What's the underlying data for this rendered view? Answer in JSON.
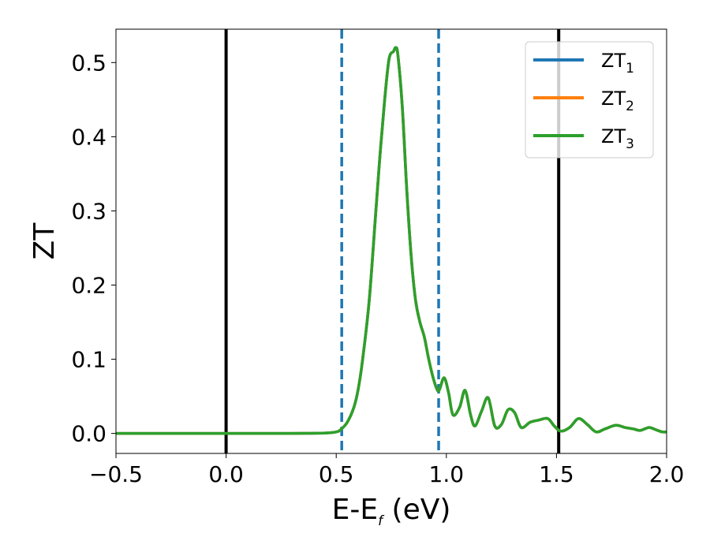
{
  "chart_data": {
    "type": "line",
    "xlabel": "E-E",
    "xlabel_sub": "f",
    "xlabel_unit": " (eV)",
    "ylabel": "ZT",
    "xlim": [
      -0.5,
      2.0
    ],
    "ylim": [
      -0.027,
      0.545
    ],
    "xticks": [
      -0.5,
      0.0,
      0.5,
      1.0,
      1.5,
      2.0
    ],
    "xtick_labels": [
      "−0.5",
      "0.0",
      "0.5",
      "1.0",
      "1.5",
      "2.0"
    ],
    "yticks": [
      0.0,
      0.1,
      0.2,
      0.3,
      0.4,
      0.5
    ],
    "ytick_labels": [
      "0.0",
      "0.1",
      "0.2",
      "0.3",
      "0.4",
      "0.5"
    ],
    "grid": false,
    "legend_position": "top-right",
    "vertical_lines": [
      {
        "x": 0.0,
        "style": "solid",
        "color": "#000000"
      },
      {
        "x": 1.51,
        "style": "solid",
        "color": "#000000"
      },
      {
        "x": 0.525,
        "style": "dashed",
        "color": "#1f77b4"
      },
      {
        "x": 0.965,
        "style": "dashed",
        "color": "#1f77b4"
      }
    ],
    "x": [
      -0.5,
      -0.3,
      -0.1,
      0.1,
      0.3,
      0.45,
      0.5,
      0.52,
      0.55,
      0.58,
      0.6,
      0.62,
      0.65,
      0.68,
      0.7,
      0.72,
      0.74,
      0.76,
      0.77,
      0.78,
      0.8,
      0.82,
      0.84,
      0.86,
      0.88,
      0.9,
      0.92,
      0.94,
      0.96,
      0.97,
      0.99,
      1.01,
      1.03,
      1.06,
      1.085,
      1.11,
      1.13,
      1.16,
      1.19,
      1.22,
      1.25,
      1.28,
      1.31,
      1.34,
      1.38,
      1.42,
      1.46,
      1.49,
      1.52,
      1.56,
      1.6,
      1.64,
      1.68,
      1.72,
      1.77,
      1.81,
      1.85,
      1.88,
      1.92,
      1.95,
      1.98,
      2.0
    ],
    "series": [
      {
        "name": "ZT",
        "name_sub": "1",
        "color": "#1f77b4",
        "values": [
          0.0,
          0.0,
          0.0,
          0.0,
          0.0,
          0.0005,
          0.002,
          0.005,
          0.015,
          0.035,
          0.06,
          0.1,
          0.18,
          0.3,
          0.38,
          0.45,
          0.505,
          0.515,
          0.52,
          0.51,
          0.44,
          0.33,
          0.24,
          0.18,
          0.15,
          0.13,
          0.1,
          0.075,
          0.058,
          0.06,
          0.075,
          0.055,
          0.025,
          0.035,
          0.058,
          0.025,
          0.01,
          0.03,
          0.048,
          0.01,
          0.012,
          0.032,
          0.028,
          0.008,
          0.015,
          0.018,
          0.02,
          0.01,
          0.003,
          0.008,
          0.02,
          0.012,
          0.002,
          0.006,
          0.011,
          0.008,
          0.006,
          0.004,
          0.008,
          0.005,
          0.002,
          0.002
        ]
      },
      {
        "name": "ZT",
        "name_sub": "2",
        "color": "#ff7f0e",
        "values": [
          0.0,
          0.0,
          0.0,
          0.0,
          0.0,
          0.0005,
          0.002,
          0.005,
          0.015,
          0.035,
          0.06,
          0.1,
          0.18,
          0.3,
          0.38,
          0.45,
          0.505,
          0.515,
          0.52,
          0.51,
          0.44,
          0.33,
          0.24,
          0.18,
          0.15,
          0.13,
          0.1,
          0.075,
          0.058,
          0.06,
          0.075,
          0.055,
          0.025,
          0.035,
          0.058,
          0.025,
          0.01,
          0.03,
          0.048,
          0.01,
          0.012,
          0.032,
          0.028,
          0.008,
          0.015,
          0.018,
          0.02,
          0.01,
          0.003,
          0.008,
          0.02,
          0.012,
          0.002,
          0.006,
          0.011,
          0.008,
          0.006,
          0.004,
          0.008,
          0.005,
          0.002,
          0.002
        ]
      },
      {
        "name": "ZT",
        "name_sub": "3",
        "color": "#2ca02c",
        "values": [
          0.0,
          0.0,
          0.0,
          0.0,
          0.0,
          0.0005,
          0.002,
          0.005,
          0.015,
          0.035,
          0.06,
          0.1,
          0.18,
          0.3,
          0.38,
          0.45,
          0.505,
          0.515,
          0.52,
          0.51,
          0.44,
          0.33,
          0.24,
          0.18,
          0.15,
          0.13,
          0.1,
          0.075,
          0.058,
          0.06,
          0.075,
          0.055,
          0.025,
          0.035,
          0.058,
          0.025,
          0.01,
          0.03,
          0.048,
          0.01,
          0.012,
          0.032,
          0.028,
          0.008,
          0.015,
          0.018,
          0.02,
          0.01,
          0.003,
          0.008,
          0.02,
          0.012,
          0.002,
          0.006,
          0.011,
          0.008,
          0.006,
          0.004,
          0.008,
          0.005,
          0.002,
          0.002
        ]
      }
    ]
  }
}
